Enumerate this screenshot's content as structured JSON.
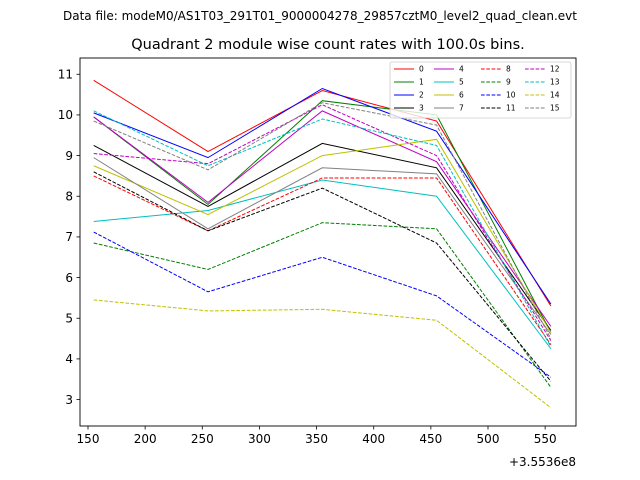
{
  "chart_data": {
    "type": "line",
    "suptitle": "Data file: modeM0/AS1T03_291T01_9000004278_29857cztM0_level2_quad_clean.evt",
    "title": "Quadrant 2 module wise count rates with 100.0s bins.",
    "xlabel": "",
    "ylabel": "",
    "x_offset_label": "+3.5536e8",
    "x": [
      155,
      255,
      355,
      455,
      555
    ],
    "xlim": [
      143,
      577
    ],
    "ylim": [
      2.35,
      11.4
    ],
    "xticks": [
      150,
      200,
      250,
      300,
      350,
      400,
      450,
      500,
      550
    ],
    "yticks": [
      3,
      4,
      5,
      6,
      7,
      8,
      9,
      10,
      11
    ],
    "legend_position": "top-right",
    "series": [
      {
        "name": "0",
        "color": "#ff0000",
        "style": "solid",
        "values": [
          10.85,
          9.1,
          10.6,
          9.85,
          5.3
        ]
      },
      {
        "name": "1",
        "color": "#008000",
        "style": "solid",
        "values": [
          9.95,
          7.8,
          10.35,
          10.0,
          4.65
        ]
      },
      {
        "name": "2",
        "color": "#0000ff",
        "style": "solid",
        "values": [
          10.05,
          8.95,
          10.65,
          9.6,
          5.35
        ]
      },
      {
        "name": "3",
        "color": "#000000",
        "style": "solid",
        "values": [
          9.25,
          7.75,
          9.3,
          8.7,
          4.7
        ]
      },
      {
        "name": "4",
        "color": "#c000c0",
        "style": "solid",
        "values": [
          9.95,
          7.85,
          10.1,
          8.85,
          4.8
        ]
      },
      {
        "name": "5",
        "color": "#00c0c0",
        "style": "solid",
        "values": [
          7.38,
          7.65,
          8.4,
          8.0,
          4.25
        ]
      },
      {
        "name": "6",
        "color": "#c0c000",
        "style": "solid",
        "values": [
          8.75,
          7.55,
          9.0,
          9.4,
          4.65
        ]
      },
      {
        "name": "7",
        "color": "#808080",
        "style": "solid",
        "values": [
          8.95,
          7.2,
          8.7,
          8.55,
          4.6
        ]
      },
      {
        "name": "8",
        "color": "#ff0000",
        "style": "dashed",
        "values": [
          8.5,
          7.15,
          8.45,
          8.45,
          4.35
        ]
      },
      {
        "name": "9",
        "color": "#008000",
        "style": "dashed",
        "values": [
          6.85,
          6.2,
          7.35,
          7.2,
          3.3
        ]
      },
      {
        "name": "10",
        "color": "#0000ff",
        "style": "dashed",
        "values": [
          7.12,
          5.65,
          6.5,
          5.55,
          3.55
        ]
      },
      {
        "name": "11",
        "color": "#000000",
        "style": "dashed",
        "values": [
          8.6,
          7.15,
          8.2,
          6.85,
          3.45
        ]
      },
      {
        "name": "12",
        "color": "#c000c0",
        "style": "dashed",
        "values": [
          9.05,
          8.8,
          10.25,
          9.0,
          4.45
        ]
      },
      {
        "name": "13",
        "color": "#00c0c0",
        "style": "dashed",
        "values": [
          10.1,
          8.75,
          9.9,
          9.25,
          4.3
        ]
      },
      {
        "name": "14",
        "color": "#c0c000",
        "style": "dashed",
        "values": [
          5.45,
          5.18,
          5.22,
          4.95,
          2.8
        ]
      },
      {
        "name": "15",
        "color": "#808080",
        "style": "dashed",
        "values": [
          9.85,
          8.65,
          10.3,
          9.75,
          4.5
        ]
      }
    ]
  }
}
